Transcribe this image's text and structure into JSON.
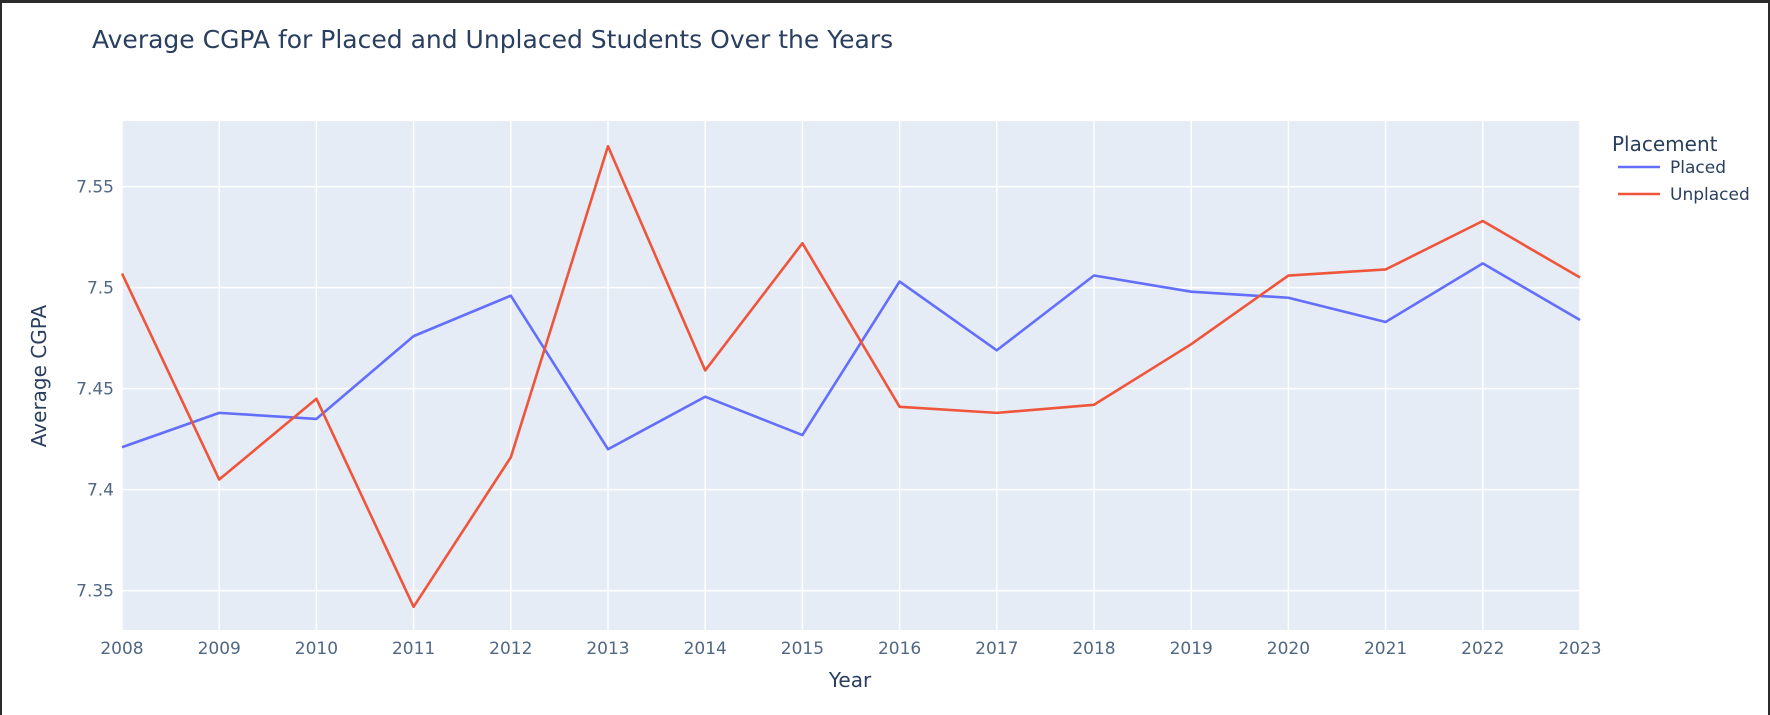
{
  "chart_data": {
    "type": "line",
    "title": "Average CGPA for Placed and Unplaced Students Over the Years",
    "xlabel": "Year",
    "ylabel": "Average CGPA",
    "x": [
      2008,
      2009,
      2010,
      2011,
      2012,
      2013,
      2014,
      2015,
      2016,
      2017,
      2018,
      2019,
      2020,
      2021,
      2022,
      2023
    ],
    "xlim": [
      2008,
      2023
    ],
    "ylim": [
      7.3305,
      7.5825
    ],
    "y_ticks": [
      7.35,
      7.4,
      7.45,
      7.5,
      7.55
    ],
    "y_tick_labels": [
      "7.35",
      "7.4",
      "7.45",
      "7.5",
      "7.55"
    ],
    "grid": true,
    "legend": {
      "title": "Placement",
      "placement": "top-right"
    },
    "series": [
      {
        "name": "Placed",
        "color": "#636efa",
        "values": [
          7.421,
          7.438,
          7.435,
          7.476,
          7.496,
          7.42,
          7.446,
          7.427,
          7.503,
          7.469,
          7.506,
          7.498,
          7.495,
          7.483,
          7.512,
          7.484
        ]
      },
      {
        "name": "Unplaced",
        "color": "#ef553b",
        "values": [
          7.507,
          7.405,
          7.445,
          7.342,
          7.416,
          7.57,
          7.459,
          7.522,
          7.441,
          7.438,
          7.442,
          7.472,
          7.506,
          7.509,
          7.533,
          7.505
        ]
      }
    ],
    "colors": {
      "plot_background": "#e5ecf6",
      "gridline": "#ffffff",
      "text": "#2a3f5f",
      "tick_text": "#506784"
    }
  }
}
